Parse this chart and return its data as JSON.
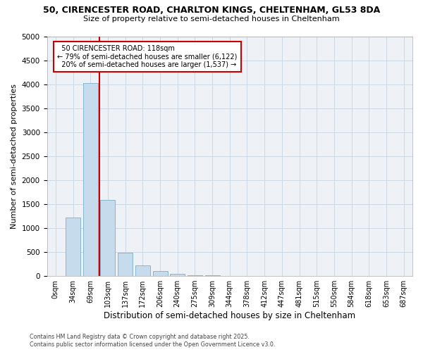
{
  "title_line1": "50, CIRENCESTER ROAD, CHARLTON KINGS, CHELTENHAM, GL53 8DA",
  "title_line2": "Size of property relative to semi-detached houses in Cheltenham",
  "xlabel": "Distribution of semi-detached houses by size in Cheltenham",
  "ylabel": "Number of semi-detached properties",
  "bin_labels": [
    "0sqm",
    "34sqm",
    "69sqm",
    "103sqm",
    "137sqm",
    "172sqm",
    "206sqm",
    "240sqm",
    "275sqm",
    "309sqm",
    "344sqm",
    "378sqm",
    "412sqm",
    "447sqm",
    "481sqm",
    "515sqm",
    "550sqm",
    "584sqm",
    "618sqm",
    "653sqm",
    "687sqm"
  ],
  "bar_heights": [
    0,
    1220,
    4020,
    1590,
    480,
    220,
    100,
    50,
    20,
    10,
    5,
    3,
    2,
    1,
    1,
    1,
    0,
    0,
    0,
    0,
    0
  ],
  "bar_color": "#c6dcec",
  "bar_edge_color": "#7aaec8",
  "red_line_x": 2.5,
  "property_label": "50 CIRENCESTER ROAD: 118sqm",
  "pct_smaller": 79,
  "count_smaller": 6122,
  "pct_larger": 20,
  "count_larger": 1537,
  "annotation_box_color": "#cc0000",
  "ylim_max": 5000,
  "yticks": [
    0,
    500,
    1000,
    1500,
    2000,
    2500,
    3000,
    3500,
    4000,
    4500,
    5000
  ],
  "footer_line1": "Contains HM Land Registry data © Crown copyright and database right 2025.",
  "footer_line2": "Contains public sector information licensed under the Open Government Licence v3.0.",
  "bg_color": "#eef2f7"
}
